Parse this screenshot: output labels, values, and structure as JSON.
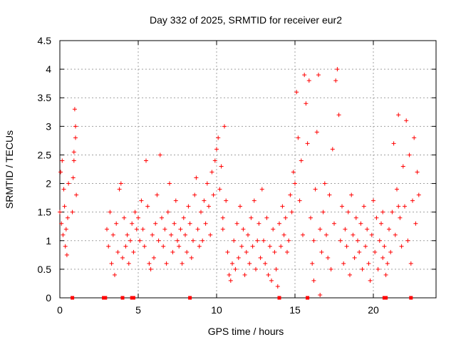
{
  "chart_data": {
    "type": "scatter",
    "title": "Day 332 of 2025, SRMTID for receiver eur2",
    "xlabel": "GPS time / hours",
    "ylabel": "SRMTID / TECUs",
    "xlim": [
      0,
      24
    ],
    "ylim": [
      0,
      4.5
    ],
    "x_ticks": [
      0,
      5,
      10,
      15,
      20
    ],
    "x_tick_labels": [
      "0",
      "5",
      "10",
      "15",
      "20"
    ],
    "y_ticks": [
      0,
      0.5,
      1,
      1.5,
      2,
      2.5,
      3,
      3.5,
      4,
      4.5
    ],
    "y_tick_labels": [
      "0",
      "0.5",
      "1",
      "1.5",
      "2",
      "2.5",
      "3",
      "3.5",
      "4",
      "4.5"
    ],
    "grid": true,
    "marker": "+",
    "series": [
      {
        "name": "SRMTID",
        "color": "#ff0000",
        "points": [
          [
            0.0,
            1.5
          ],
          [
            0.05,
            2.2
          ],
          [
            0.1,
            1.3
          ],
          [
            0.15,
            2.4
          ],
          [
            0.2,
            1.1
          ],
          [
            0.25,
            1.9
          ],
          [
            0.3,
            1.6
          ],
          [
            0.35,
            0.9
          ],
          [
            0.4,
            1.2
          ],
          [
            0.45,
            0.75
          ],
          [
            0.5,
            1.4
          ],
          [
            0.55,
            2.0
          ],
          [
            0.8,
            1.5
          ],
          [
            0.85,
            2.1
          ],
          [
            0.9,
            2.55
          ],
          [
            0.95,
            3.3
          ],
          [
            1.0,
            3.0
          ],
          [
            1.05,
            1.8
          ],
          [
            0.9,
            2.4
          ],
          [
            1.0,
            2.8
          ],
          [
            3.0,
            1.2
          ],
          [
            3.1,
            0.9
          ],
          [
            3.2,
            1.5
          ],
          [
            3.3,
            0.6
          ],
          [
            3.4,
            1.1
          ],
          [
            3.5,
            0.4
          ],
          [
            3.6,
            1.3
          ],
          [
            3.7,
            0.8
          ],
          [
            3.8,
            1.9
          ],
          [
            3.9,
            2.0
          ],
          [
            4.0,
            0.7
          ],
          [
            4.1,
            1.4
          ],
          [
            4.2,
            0.9
          ],
          [
            4.3,
            1.1
          ],
          [
            4.4,
            0.6
          ],
          [
            4.5,
            1.0
          ],
          [
            4.6,
            1.3
          ],
          [
            4.7,
            0.8
          ],
          [
            4.8,
            1.5
          ],
          [
            4.9,
            1.2
          ],
          [
            5.0,
            1.4
          ],
          [
            5.1,
            1.0
          ],
          [
            5.2,
            1.7
          ],
          [
            5.3,
            1.2
          ],
          [
            5.4,
            0.9
          ],
          [
            5.5,
            2.4
          ],
          [
            5.6,
            1.6
          ],
          [
            5.7,
            0.6
          ],
          [
            5.8,
            0.5
          ],
          [
            5.9,
            1.1
          ],
          [
            6.0,
            0.7
          ],
          [
            6.1,
            1.3
          ],
          [
            6.2,
            1.8
          ],
          [
            6.3,
            1.0
          ],
          [
            6.4,
            2.5
          ],
          [
            6.5,
            1.4
          ],
          [
            6.6,
            0.9
          ],
          [
            6.7,
            1.2
          ],
          [
            6.8,
            0.6
          ],
          [
            6.9,
            1.5
          ],
          [
            7.0,
            2.0
          ],
          [
            7.1,
            1.1
          ],
          [
            7.2,
            0.8
          ],
          [
            7.3,
            1.3
          ],
          [
            7.4,
            1.7
          ],
          [
            7.5,
            1.0
          ],
          [
            7.6,
            0.9
          ],
          [
            7.7,
            1.2
          ],
          [
            7.8,
            0.6
          ],
          [
            7.9,
            1.4
          ],
          [
            8.0,
            1.1
          ],
          [
            8.1,
            0.8
          ],
          [
            8.2,
            1.6
          ],
          [
            8.3,
            1.3
          ],
          [
            8.4,
            0.7
          ],
          [
            8.5,
            1.0
          ],
          [
            8.6,
            1.8
          ],
          [
            8.7,
            2.1
          ],
          [
            8.8,
            1.2
          ],
          [
            8.9,
            0.9
          ],
          [
            9.0,
            1.5
          ],
          [
            9.1,
            1.0
          ],
          [
            9.2,
            1.7
          ],
          [
            9.3,
            1.3
          ],
          [
            9.4,
            2.0
          ],
          [
            9.5,
            1.6
          ],
          [
            9.6,
            1.1
          ],
          [
            9.7,
            2.2
          ],
          [
            9.8,
            1.8
          ],
          [
            9.9,
            2.4
          ],
          [
            10.0,
            2.6
          ],
          [
            10.1,
            2.8
          ],
          [
            10.2,
            1.9
          ],
          [
            10.3,
            2.3
          ],
          [
            10.4,
            1.4
          ],
          [
            10.5,
            3.0
          ],
          [
            10.6,
            1.7
          ],
          [
            10.7,
            0.8
          ],
          [
            10.8,
            0.4
          ],
          [
            10.9,
            0.3
          ],
          [
            11.0,
            0.6
          ],
          [
            11.1,
            1.0
          ],
          [
            11.2,
            0.5
          ],
          [
            11.3,
            1.3
          ],
          [
            11.4,
            0.7
          ],
          [
            11.5,
            1.6
          ],
          [
            11.6,
            0.9
          ],
          [
            11.7,
            1.2
          ],
          [
            11.8,
            0.4
          ],
          [
            11.9,
            0.8
          ],
          [
            12.0,
            1.1
          ],
          [
            12.1,
            0.6
          ],
          [
            12.2,
            1.4
          ],
          [
            12.3,
            0.9
          ],
          [
            12.4,
            1.7
          ],
          [
            12.5,
            0.5
          ],
          [
            12.6,
            1.0
          ],
          [
            12.7,
            1.3
          ],
          [
            12.8,
            0.7
          ],
          [
            12.9,
            1.9
          ],
          [
            13.0,
            1.0
          ],
          [
            13.1,
            0.6
          ],
          [
            13.2,
            1.4
          ],
          [
            13.3,
            0.4
          ],
          [
            13.4,
            0.9
          ],
          [
            13.5,
            0.3
          ],
          [
            13.6,
            1.2
          ],
          [
            13.7,
            0.8
          ],
          [
            13.8,
            0.5
          ],
          [
            13.9,
            0.2
          ],
          [
            14.0,
            1.3
          ],
          [
            14.1,
            0.9
          ],
          [
            14.2,
            1.6
          ],
          [
            14.3,
            1.1
          ],
          [
            14.4,
            1.4
          ],
          [
            14.5,
            0.8
          ],
          [
            14.6,
            1.0
          ],
          [
            14.7,
            1.8
          ],
          [
            14.8,
            1.5
          ],
          [
            14.9,
            2.2
          ],
          [
            15.0,
            2.0
          ],
          [
            15.1,
            3.6
          ],
          [
            15.2,
            2.8
          ],
          [
            15.3,
            1.7
          ],
          [
            15.4,
            2.4
          ],
          [
            15.5,
            1.1
          ],
          [
            15.6,
            3.9
          ],
          [
            15.7,
            3.4
          ],
          [
            15.8,
            2.7
          ],
          [
            15.9,
            3.8
          ],
          [
            16.0,
            1.4
          ],
          [
            16.1,
            0.6
          ],
          [
            16.2,
            1.0
          ],
          [
            16.3,
            1.9
          ],
          [
            16.4,
            2.9
          ],
          [
            16.5,
            3.9
          ],
          [
            16.6,
            1.2
          ],
          [
            16.7,
            0.8
          ],
          [
            16.8,
            1.5
          ],
          [
            16.9,
            2.0
          ],
          [
            17.0,
            1.1
          ],
          [
            17.1,
            0.7
          ],
          [
            17.2,
            1.8
          ],
          [
            17.3,
            0.5
          ],
          [
            17.4,
            2.6
          ],
          [
            17.5,
            1.3
          ],
          [
            17.6,
            3.8
          ],
          [
            17.7,
            4.0
          ],
          [
            17.8,
            3.2
          ],
          [
            17.9,
            1.0
          ],
          [
            18.0,
            1.6
          ],
          [
            18.1,
            0.6
          ],
          [
            18.2,
            1.2
          ],
          [
            18.3,
            0.9
          ],
          [
            18.4,
            1.5
          ],
          [
            18.5,
            0.4
          ],
          [
            18.6,
            1.8
          ],
          [
            18.7,
            1.1
          ],
          [
            18.8,
            0.7
          ],
          [
            18.9,
            1.4
          ],
          [
            19.0,
            1.0
          ],
          [
            19.1,
            0.8
          ],
          [
            19.2,
            1.3
          ],
          [
            19.3,
            0.5
          ],
          [
            19.4,
            1.6
          ],
          [
            19.5,
            0.9
          ],
          [
            19.6,
            1.2
          ],
          [
            19.7,
            0.6
          ],
          [
            19.8,
            0.3
          ],
          [
            19.9,
            1.1
          ],
          [
            20.0,
            1.7
          ],
          [
            20.1,
            0.8
          ],
          [
            20.2,
            1.4
          ],
          [
            20.3,
            0.5
          ],
          [
            20.4,
            1.0
          ],
          [
            20.5,
            1.3
          ],
          [
            20.6,
            0.7
          ],
          [
            20.7,
            0.9
          ],
          [
            20.8,
            0.4
          ],
          [
            20.9,
            0.6
          ],
          [
            21.0,
            1.2
          ],
          [
            21.1,
            0.8
          ],
          [
            21.2,
            1.5
          ],
          [
            21.3,
            2.7
          ],
          [
            21.4,
            1.1
          ],
          [
            21.5,
            1.9
          ],
          [
            21.6,
            3.2
          ],
          [
            21.7,
            1.4
          ],
          [
            21.8,
            0.9
          ],
          [
            21.9,
            2.3
          ],
          [
            22.0,
            1.6
          ],
          [
            22.1,
            3.1
          ],
          [
            22.2,
            1.0
          ],
          [
            22.3,
            2.5
          ],
          [
            22.4,
            0.6
          ],
          [
            22.5,
            1.7
          ],
          [
            22.6,
            2.8
          ],
          [
            22.7,
            1.3
          ],
          [
            22.8,
            2.2
          ],
          [
            22.9,
            1.8
          ],
          [
            21.6,
            1.6
          ],
          [
            20.6,
            1.5
          ],
          [
            10.4,
            1.2
          ],
          [
            16.2,
            0.3
          ],
          [
            16.6,
            0.05
          ]
        ]
      }
    ],
    "zero_markers_x": [
      0.8,
      2.8,
      2.9,
      4.0,
      4.6,
      4.7,
      8.3,
      14.0,
      15.8,
      20.7,
      20.8,
      22.4
    ]
  }
}
